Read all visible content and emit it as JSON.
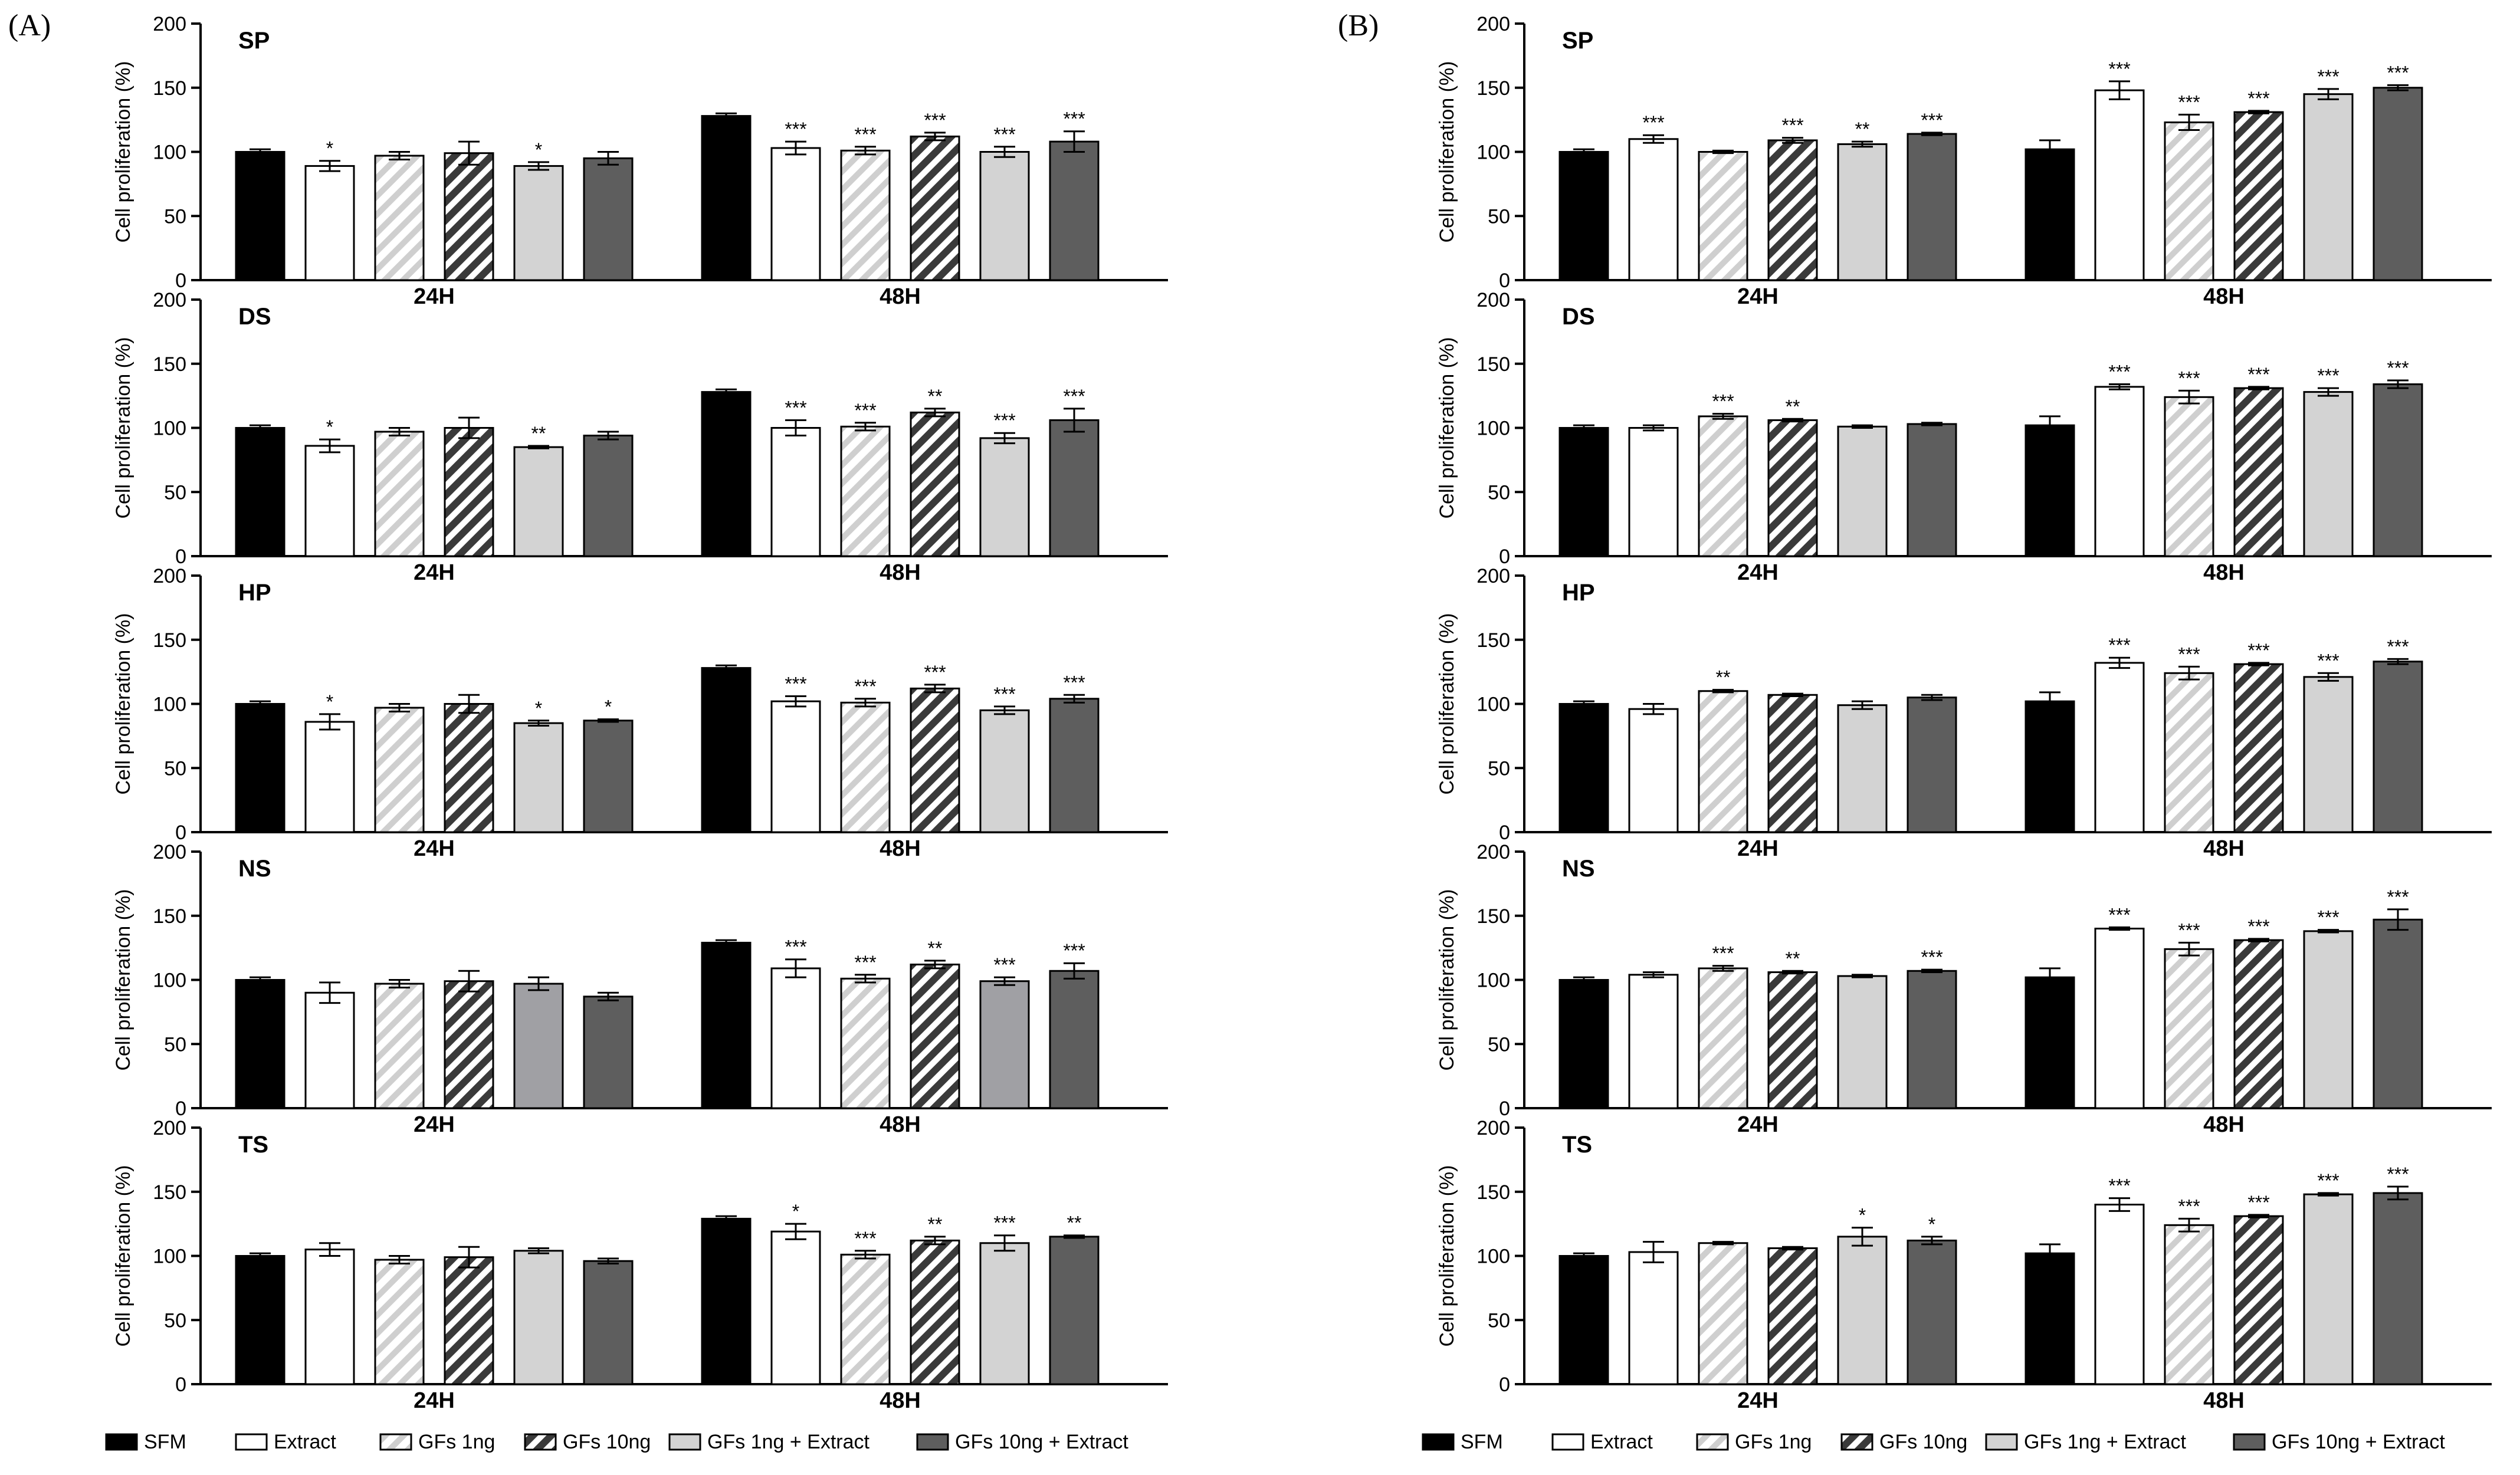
{
  "panels": [
    {
      "id": "A",
      "label": "(A)"
    },
    {
      "id": "B",
      "label": "(B)"
    }
  ],
  "legend": [
    {
      "name": "SFM",
      "fill": "#000000",
      "pattern": "solid"
    },
    {
      "name": "Extract",
      "fill": "#ffffff",
      "pattern": "solid"
    },
    {
      "name": "GFs 1ng",
      "fill": "#ffffff",
      "pattern": "hatch-light"
    },
    {
      "name": "GFs 10ng",
      "fill": "#ffffff",
      "pattern": "hatch-dark"
    },
    {
      "name": "GFs 1ng + Extract",
      "fill": "#d3d3d3",
      "pattern": "solid"
    },
    {
      "name": "GFs 10ng + Extract",
      "fill": "#5e5e5e",
      "pattern": "solid"
    }
  ],
  "colors": {
    "SFM": "#000000",
    "Extract": "#ffffff",
    "GFs1": "#d8d8d8",
    "GFs10": "#4a4a4a",
    "GFs1Ext": "#d3d3d3",
    "GFs1Ext_NS_A": "#a0a0a4",
    "GFs10Ext": "#5e5e5e"
  },
  "chart_data": [
    {
      "type": "bar",
      "panel": "A",
      "subplot": "SP",
      "categories": [
        "24H",
        "48H"
      ],
      "ylabel": "Cell proliferation (%)",
      "ylim": [
        0,
        200
      ],
      "yticks": [
        0,
        50,
        100,
        150,
        200
      ],
      "series": [
        {
          "name": "SFM",
          "values": [
            100,
            128
          ],
          "errors": [
            2,
            2
          ],
          "stars": [
            "",
            ""
          ]
        },
        {
          "name": "Extract",
          "values": [
            89,
            103
          ],
          "errors": [
            4,
            5
          ],
          "stars": [
            "*",
            "***"
          ]
        },
        {
          "name": "GFs 1ng",
          "values": [
            97,
            101
          ],
          "errors": [
            3,
            3
          ],
          "stars": [
            "",
            "***"
          ]
        },
        {
          "name": "GFs 10ng",
          "values": [
            99,
            112
          ],
          "errors": [
            9,
            3
          ],
          "stars": [
            "",
            "***"
          ]
        },
        {
          "name": "GFs 1ng + Extract",
          "values": [
            89,
            100
          ],
          "errors": [
            3,
            4
          ],
          "stars": [
            "*",
            "***"
          ]
        },
        {
          "name": "GFs 10ng + Extract",
          "values": [
            95,
            108
          ],
          "errors": [
            5,
            8
          ],
          "stars": [
            "",
            "***"
          ]
        }
      ]
    },
    {
      "type": "bar",
      "panel": "A",
      "subplot": "DS",
      "categories": [
        "24H",
        "48H"
      ],
      "ylabel": "Cell proliferation (%)",
      "ylim": [
        0,
        200
      ],
      "yticks": [
        0,
        50,
        100,
        150,
        200
      ],
      "series": [
        {
          "name": "SFM",
          "values": [
            100,
            128
          ],
          "errors": [
            2,
            2
          ],
          "stars": [
            "",
            ""
          ]
        },
        {
          "name": "Extract",
          "values": [
            86,
            100
          ],
          "errors": [
            5,
            6
          ],
          "stars": [
            "*",
            "***"
          ]
        },
        {
          "name": "GFs 1ng",
          "values": [
            97,
            101
          ],
          "errors": [
            3,
            3
          ],
          "stars": [
            "",
            "***"
          ]
        },
        {
          "name": "GFs 10ng",
          "values": [
            100,
            112
          ],
          "errors": [
            8,
            3
          ],
          "stars": [
            "",
            "**"
          ]
        },
        {
          "name": "GFs 1ng + Extract",
          "values": [
            85,
            92
          ],
          "errors": [
            1,
            4
          ],
          "stars": [
            "**",
            "***"
          ]
        },
        {
          "name": "GFs 10ng + Extract",
          "values": [
            94,
            106
          ],
          "errors": [
            3,
            9
          ],
          "stars": [
            "",
            "***"
          ]
        }
      ]
    },
    {
      "type": "bar",
      "panel": "A",
      "subplot": "HP",
      "categories": [
        "24H",
        "48H"
      ],
      "ylabel": "Cell proliferation (%)",
      "ylim": [
        0,
        200
      ],
      "yticks": [
        0,
        50,
        100,
        150,
        200
      ],
      "series": [
        {
          "name": "SFM",
          "values": [
            100,
            128
          ],
          "errors": [
            2,
            2
          ],
          "stars": [
            "",
            ""
          ]
        },
        {
          "name": "Extract",
          "values": [
            86,
            102
          ],
          "errors": [
            6,
            4
          ],
          "stars": [
            "*",
            "***"
          ]
        },
        {
          "name": "GFs 1ng",
          "values": [
            97,
            101
          ],
          "errors": [
            3,
            3
          ],
          "stars": [
            "",
            "***"
          ]
        },
        {
          "name": "GFs 10ng",
          "values": [
            100,
            112
          ],
          "errors": [
            7,
            3
          ],
          "stars": [
            "",
            "***"
          ]
        },
        {
          "name": "GFs 1ng + Extract",
          "values": [
            85,
            95
          ],
          "errors": [
            2,
            3
          ],
          "stars": [
            "*",
            "***"
          ]
        },
        {
          "name": "GFs 10ng + Extract",
          "values": [
            87,
            104
          ],
          "errors": [
            1,
            3
          ],
          "stars": [
            "*",
            "***"
          ]
        }
      ]
    },
    {
      "type": "bar",
      "panel": "A",
      "subplot": "NS",
      "categories": [
        "24H",
        "48H"
      ],
      "ylabel": "Cell proliferation (%)",
      "ylim": [
        0,
        200
      ],
      "yticks": [
        0,
        50,
        100,
        150,
        200
      ],
      "series": [
        {
          "name": "SFM",
          "values": [
            100,
            129
          ],
          "errors": [
            2,
            2
          ],
          "stars": [
            "",
            ""
          ]
        },
        {
          "name": "Extract",
          "values": [
            90,
            109
          ],
          "errors": [
            8,
            7
          ],
          "stars": [
            "",
            "***"
          ]
        },
        {
          "name": "GFs 1ng",
          "values": [
            97,
            101
          ],
          "errors": [
            3,
            3
          ],
          "stars": [
            "",
            "***"
          ]
        },
        {
          "name": "GFs 10ng",
          "values": [
            99,
            112
          ],
          "errors": [
            8,
            3
          ],
          "stars": [
            "",
            "**"
          ]
        },
        {
          "name": "GFs 1ng + Extract",
          "values": [
            97,
            99
          ],
          "errors": [
            5,
            3
          ],
          "stars": [
            "",
            "***"
          ]
        },
        {
          "name": "GFs 10ng + Extract",
          "values": [
            87,
            107
          ],
          "errors": [
            3,
            6
          ],
          "stars": [
            "",
            "***"
          ]
        }
      ]
    },
    {
      "type": "bar",
      "panel": "A",
      "subplot": "TS",
      "categories": [
        "24H",
        "48H"
      ],
      "ylabel": "Cell proliferation (%)",
      "ylim": [
        0,
        200
      ],
      "yticks": [
        0,
        50,
        100,
        150,
        200
      ],
      "series": [
        {
          "name": "SFM",
          "values": [
            100,
            129
          ],
          "errors": [
            2,
            2
          ],
          "stars": [
            "",
            ""
          ]
        },
        {
          "name": "Extract",
          "values": [
            105,
            119
          ],
          "errors": [
            5,
            6
          ],
          "stars": [
            "",
            "*"
          ]
        },
        {
          "name": "GFs 1ng",
          "values": [
            97,
            101
          ],
          "errors": [
            3,
            3
          ],
          "stars": [
            "",
            "***"
          ]
        },
        {
          "name": "GFs 10ng",
          "values": [
            99,
            112
          ],
          "errors": [
            8,
            3
          ],
          "stars": [
            "",
            "**"
          ]
        },
        {
          "name": "GFs 1ng + Extract",
          "values": [
            104,
            110
          ],
          "errors": [
            2,
            6
          ],
          "stars": [
            "",
            "***"
          ]
        },
        {
          "name": "GFs 10ng + Extract",
          "values": [
            96,
            115
          ],
          "errors": [
            2,
            1
          ],
          "stars": [
            "",
            "**"
          ]
        }
      ]
    },
    {
      "type": "bar",
      "panel": "B",
      "subplot": "SP",
      "categories": [
        "24H",
        "48H"
      ],
      "ylabel": "Cell proliferation (%)",
      "ylim": [
        0,
        200
      ],
      "yticks": [
        0,
        50,
        100,
        150,
        200
      ],
      "series": [
        {
          "name": "SFM",
          "values": [
            100,
            102
          ],
          "errors": [
            2,
            7
          ],
          "stars": [
            "",
            ""
          ]
        },
        {
          "name": "Extract",
          "values": [
            110,
            148
          ],
          "errors": [
            3,
            7
          ],
          "stars": [
            "***",
            "***"
          ]
        },
        {
          "name": "GFs 1ng",
          "values": [
            100,
            123
          ],
          "errors": [
            1,
            6
          ],
          "stars": [
            "",
            "***"
          ]
        },
        {
          "name": "GFs 10ng",
          "values": [
            109,
            131
          ],
          "errors": [
            2,
            1
          ],
          "stars": [
            "***",
            "***"
          ]
        },
        {
          "name": "GFs 1ng + Extract",
          "values": [
            106,
            145
          ],
          "errors": [
            2,
            4
          ],
          "stars": [
            "**",
            "***"
          ]
        },
        {
          "name": "GFs 10ng + Extract",
          "values": [
            114,
            150
          ],
          "errors": [
            1,
            2
          ],
          "stars": [
            "***",
            "***"
          ]
        }
      ]
    },
    {
      "type": "bar",
      "panel": "B",
      "subplot": "DS",
      "categories": [
        "24H",
        "48H"
      ],
      "ylabel": "Cell proliferation (%)",
      "ylim": [
        0,
        200
      ],
      "yticks": [
        0,
        50,
        100,
        150,
        200
      ],
      "series": [
        {
          "name": "SFM",
          "values": [
            100,
            102
          ],
          "errors": [
            2,
            7
          ],
          "stars": [
            "",
            ""
          ]
        },
        {
          "name": "Extract",
          "values": [
            100,
            132
          ],
          "errors": [
            2,
            2
          ],
          "stars": [
            "",
            "***"
          ]
        },
        {
          "name": "GFs 1ng",
          "values": [
            109,
            124
          ],
          "errors": [
            2,
            5
          ],
          "stars": [
            "***",
            "***"
          ]
        },
        {
          "name": "GFs 10ng",
          "values": [
            106,
            131
          ],
          "errors": [
            1,
            1
          ],
          "stars": [
            "**",
            "***"
          ]
        },
        {
          "name": "GFs 1ng + Extract",
          "values": [
            101,
            128
          ],
          "errors": [
            1,
            3
          ],
          "stars": [
            "",
            "***"
          ]
        },
        {
          "name": "GFs 10ng + Extract",
          "values": [
            103,
            134
          ],
          "errors": [
            1,
            3
          ],
          "stars": [
            "",
            "***"
          ]
        }
      ]
    },
    {
      "type": "bar",
      "panel": "B",
      "subplot": "HP",
      "categories": [
        "24H",
        "48H"
      ],
      "ylabel": "Cell proliferation (%)",
      "ylim": [
        0,
        200
      ],
      "yticks": [
        0,
        50,
        100,
        150,
        200
      ],
      "series": [
        {
          "name": "SFM",
          "values": [
            100,
            102
          ],
          "errors": [
            2,
            7
          ],
          "stars": [
            "",
            ""
          ]
        },
        {
          "name": "Extract",
          "values": [
            96,
            132
          ],
          "errors": [
            4,
            4
          ],
          "stars": [
            "",
            "***"
          ]
        },
        {
          "name": "GFs 1ng",
          "values": [
            110,
            124
          ],
          "errors": [
            1,
            5
          ],
          "stars": [
            "**",
            "***"
          ]
        },
        {
          "name": "GFs 10ng",
          "values": [
            107,
            131
          ],
          "errors": [
            1,
            1
          ],
          "stars": [
            "",
            "***"
          ]
        },
        {
          "name": "GFs 1ng + Extract",
          "values": [
            99,
            121
          ],
          "errors": [
            3,
            3
          ],
          "stars": [
            "",
            "***"
          ]
        },
        {
          "name": "GFs 10ng + Extract",
          "values": [
            105,
            133
          ],
          "errors": [
            2,
            2
          ],
          "stars": [
            "",
            "***"
          ]
        }
      ]
    },
    {
      "type": "bar",
      "panel": "B",
      "subplot": "NS",
      "categories": [
        "24H",
        "48H"
      ],
      "ylabel": "Cell proliferation (%)",
      "ylim": [
        0,
        200
      ],
      "yticks": [
        0,
        50,
        100,
        150,
        200
      ],
      "series": [
        {
          "name": "SFM",
          "values": [
            100,
            102
          ],
          "errors": [
            2,
            7
          ],
          "stars": [
            "",
            ""
          ]
        },
        {
          "name": "Extract",
          "values": [
            104,
            140
          ],
          "errors": [
            2,
            1
          ],
          "stars": [
            "",
            "***"
          ]
        },
        {
          "name": "GFs 1ng",
          "values": [
            109,
            124
          ],
          "errors": [
            2,
            5
          ],
          "stars": [
            "***",
            "***"
          ]
        },
        {
          "name": "GFs 10ng",
          "values": [
            106,
            131
          ],
          "errors": [
            1,
            1
          ],
          "stars": [
            "**",
            "***"
          ]
        },
        {
          "name": "GFs 1ng + Extract",
          "values": [
            103,
            138
          ],
          "errors": [
            1,
            1
          ],
          "stars": [
            "",
            "***"
          ]
        },
        {
          "name": "GFs 10ng + Extract",
          "values": [
            107,
            147
          ],
          "errors": [
            1,
            8
          ],
          "stars": [
            "***",
            "***"
          ]
        }
      ]
    },
    {
      "type": "bar",
      "panel": "B",
      "subplot": "TS",
      "categories": [
        "24H",
        "48H"
      ],
      "ylabel": "Cell proliferation (%)",
      "ylim": [
        0,
        200
      ],
      "yticks": [
        0,
        50,
        100,
        150,
        200
      ],
      "series": [
        {
          "name": "SFM",
          "values": [
            100,
            102
          ],
          "errors": [
            2,
            7
          ],
          "stars": [
            "",
            ""
          ]
        },
        {
          "name": "Extract",
          "values": [
            103,
            140
          ],
          "errors": [
            8,
            5
          ],
          "stars": [
            "",
            "***"
          ]
        },
        {
          "name": "GFs 1ng",
          "values": [
            110,
            124
          ],
          "errors": [
            1,
            5
          ],
          "stars": [
            "",
            "***"
          ]
        },
        {
          "name": "GFs 10ng",
          "values": [
            106,
            131
          ],
          "errors": [
            1,
            1
          ],
          "stars": [
            "",
            "***"
          ]
        },
        {
          "name": "GFs 1ng + Extract",
          "values": [
            115,
            148
          ],
          "errors": [
            7,
            1
          ],
          "stars": [
            "*",
            "***"
          ]
        },
        {
          "name": "GFs 10ng + Extract",
          "values": [
            112,
            149
          ],
          "errors": [
            3,
            5
          ],
          "stars": [
            "*",
            "***"
          ]
        }
      ]
    }
  ]
}
